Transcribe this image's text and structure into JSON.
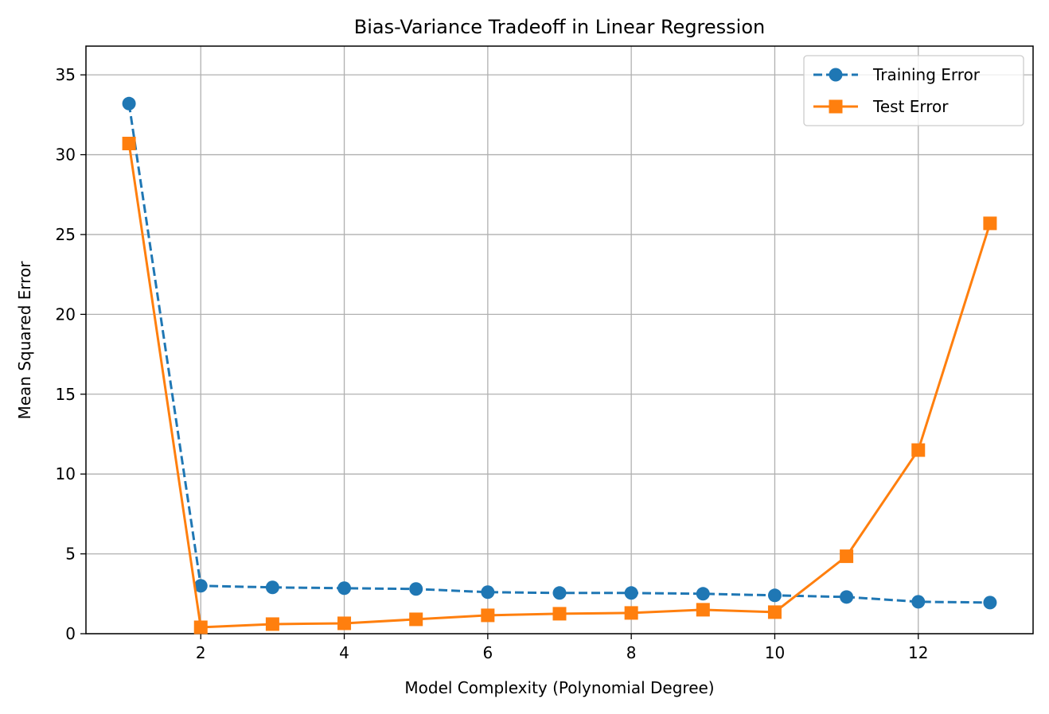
{
  "chart_data": {
    "type": "line",
    "title": "Bias-Variance Tradeoff in Linear Regression",
    "xlabel": "Model Complexity (Polynomial Degree)",
    "ylabel": "Mean Squared Error",
    "x": [
      1,
      2,
      3,
      4,
      5,
      6,
      7,
      8,
      9,
      10,
      11,
      12,
      13
    ],
    "xlim": [
      0.4,
      13.6
    ],
    "ylim": [
      0,
      36.8
    ],
    "xticks": [
      2,
      4,
      6,
      8,
      10,
      12
    ],
    "yticks": [
      0,
      5,
      10,
      15,
      20,
      25,
      30,
      35
    ],
    "grid": true,
    "legend_position": "top-right",
    "series": [
      {
        "name": "Training Error",
        "color": "#1f77b4",
        "line_style": "dashed",
        "marker": "circle",
        "values": [
          33.2,
          3.0,
          2.9,
          2.85,
          2.8,
          2.6,
          2.55,
          2.55,
          2.5,
          2.4,
          2.3,
          2.0,
          1.95
        ]
      },
      {
        "name": "Test Error",
        "color": "#ff7f0e",
        "line_style": "solid",
        "marker": "square",
        "values": [
          30.7,
          0.4,
          0.6,
          0.65,
          0.9,
          1.15,
          1.25,
          1.3,
          1.5,
          1.35,
          4.85,
          11.5,
          25.7
        ]
      }
    ]
  }
}
